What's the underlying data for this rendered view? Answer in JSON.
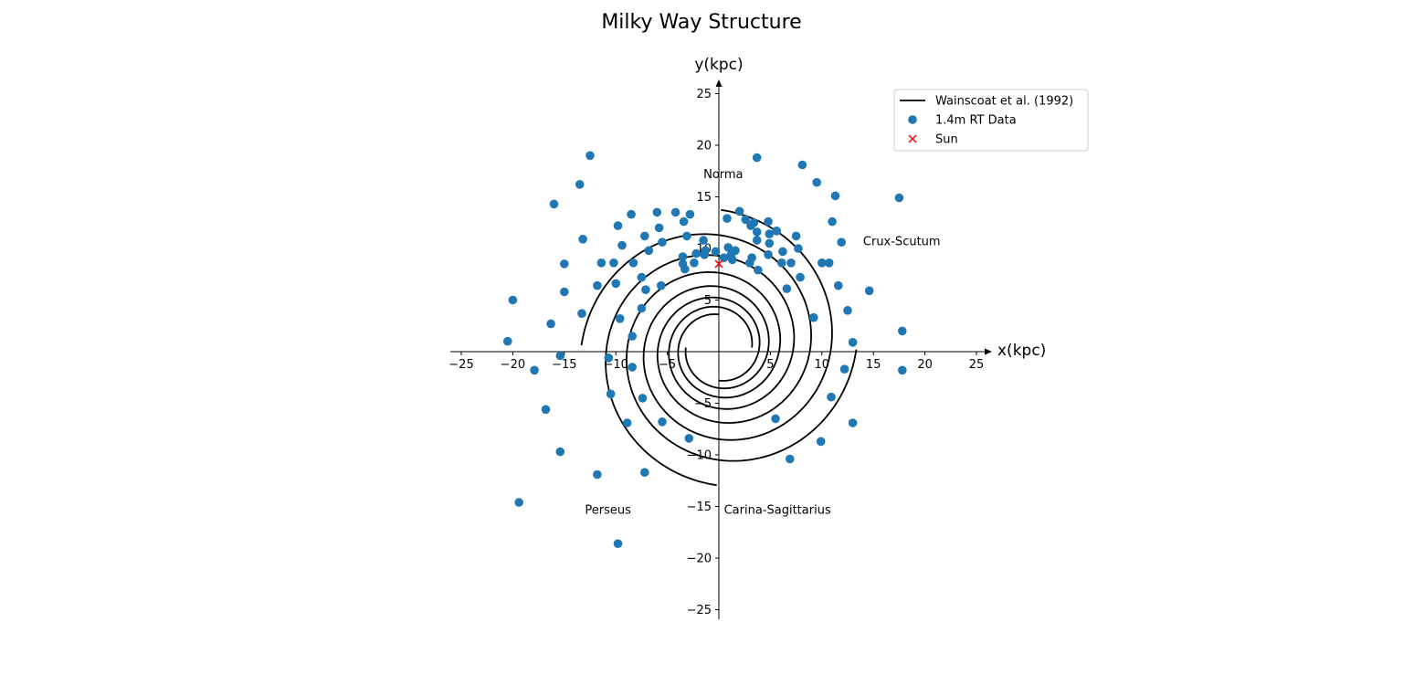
{
  "chart_data": {
    "type": "scatter",
    "title": "Milky Way Structure",
    "xlabel": "x(kpc)",
    "ylabel": "y(kpc)",
    "xlim": [
      -26,
      26
    ],
    "ylim": [
      -26,
      26
    ],
    "xticks": [
      -25,
      -20,
      -15,
      -10,
      -5,
      5,
      10,
      15,
      20,
      25
    ],
    "yticks": [
      -25,
      -20,
      -15,
      -10,
      -5,
      5,
      10,
      15,
      20,
      25
    ],
    "grid": false,
    "legend_position": "upper right",
    "legend": [
      {
        "label": "Wainscoat et al. (1992)",
        "marker": "line"
      },
      {
        "label": "1.4m RT Data",
        "marker": "circle"
      },
      {
        "label": "Sun",
        "marker": "x"
      }
    ],
    "arm_labels": [
      {
        "text": "Norma",
        "x": -1.5,
        "y": 16.8
      },
      {
        "text": "Crux-Scutum",
        "x": 14.0,
        "y": 10.3
      },
      {
        "text": "Perseus",
        "x": -13.0,
        "y": -15.7
      },
      {
        "text": "Carina-Sagittarius",
        "x": 0.5,
        "y": -15.7
      }
    ],
    "series": [
      {
        "name": "Wainscoat et al. (1992)",
        "kind": "model_spiral_arms",
        "color": "#000000",
        "arms": [
          {
            "phase_deg": 90,
            "turns_deg": 630
          },
          {
            "phase_deg": 180,
            "turns_deg": 630
          },
          {
            "phase_deg": 270,
            "turns_deg": 630
          },
          {
            "phase_deg": 0,
            "turns_deg": 630
          }
        ]
      },
      {
        "name": "1.4m RT Data",
        "color": "#1f77b4",
        "points": [
          [
            -12.5,
            19.0
          ],
          [
            -16.0,
            14.3
          ],
          [
            -13.5,
            16.2
          ],
          [
            -13.2,
            10.9
          ],
          [
            -8.5,
            13.3
          ],
          [
            -9.8,
            12.2
          ],
          [
            -9.4,
            10.3
          ],
          [
            -8.3,
            8.6
          ],
          [
            -7.2,
            11.2
          ],
          [
            -6.0,
            13.5
          ],
          [
            -5.8,
            12.0
          ],
          [
            -4.2,
            13.5
          ],
          [
            -3.4,
            12.6
          ],
          [
            -2.8,
            13.3
          ],
          [
            -5.5,
            10.6
          ],
          [
            -6.8,
            9.8
          ],
          [
            -3.1,
            11.2
          ],
          [
            -1.5,
            10.8
          ],
          [
            -1.3,
            9.8
          ],
          [
            -2.2,
            9.5
          ],
          [
            -3.5,
            9.2
          ],
          [
            -3.5,
            8.5
          ],
          [
            -3.3,
            8.0
          ],
          [
            -2.4,
            8.6
          ],
          [
            -1.4,
            9.4
          ],
          [
            -0.3,
            9.7
          ],
          [
            0.5,
            9.1
          ],
          [
            0.9,
            10.1
          ],
          [
            1.2,
            9.4
          ],
          [
            1.3,
            8.9
          ],
          [
            1.6,
            9.8
          ],
          [
            0.8,
            12.9
          ],
          [
            2.0,
            13.6
          ],
          [
            2.6,
            12.8
          ],
          [
            3.1,
            12.2
          ],
          [
            3.4,
            12.5
          ],
          [
            3.7,
            11.6
          ],
          [
            3.7,
            10.8
          ],
          [
            4.8,
            12.6
          ],
          [
            4.9,
            11.4
          ],
          [
            5.6,
            11.7
          ],
          [
            4.9,
            10.5
          ],
          [
            4.8,
            9.4
          ],
          [
            3.2,
            9.1
          ],
          [
            3.0,
            8.6
          ],
          [
            3.8,
            7.9
          ],
          [
            6.2,
            9.7
          ],
          [
            6.1,
            8.6
          ],
          [
            7.0,
            8.6
          ],
          [
            7.5,
            11.2
          ],
          [
            7.7,
            10.0
          ],
          [
            7.9,
            7.2
          ],
          [
            6.6,
            6.1
          ],
          [
            10.0,
            8.6
          ],
          [
            10.7,
            8.6
          ],
          [
            11.3,
            15.1
          ],
          [
            11.0,
            12.6
          ],
          [
            11.9,
            10.6
          ],
          [
            11.6,
            6.4
          ],
          [
            12.5,
            4.0
          ],
          [
            14.6,
            5.9
          ],
          [
            9.2,
            3.3
          ],
          [
            13.0,
            0.9
          ],
          [
            17.8,
            2.0
          ],
          [
            17.5,
            14.9
          ],
          [
            9.5,
            16.4
          ],
          [
            8.1,
            18.1
          ],
          [
            3.7,
            18.8
          ],
          [
            -10.2,
            8.6
          ],
          [
            -10.0,
            6.6
          ],
          [
            -11.4,
            8.6
          ],
          [
            -11.8,
            6.4
          ],
          [
            -15.0,
            8.5
          ],
          [
            -15.0,
            5.8
          ],
          [
            -13.3,
            3.7
          ],
          [
            -9.6,
            3.2
          ],
          [
            -7.5,
            7.2
          ],
          [
            -7.1,
            6.0
          ],
          [
            -7.5,
            4.2
          ],
          [
            -5.6,
            6.4
          ],
          [
            -8.4,
            1.5
          ],
          [
            -20.0,
            5.0
          ],
          [
            -16.3,
            2.7
          ],
          [
            -20.5,
            1.0
          ],
          [
            -15.4,
            -0.4
          ],
          [
            -17.9,
            -1.8
          ],
          [
            -10.7,
            -0.6
          ],
          [
            -8.4,
            -1.5
          ],
          [
            -16.8,
            -5.6
          ],
          [
            -10.5,
            -4.1
          ],
          [
            -7.4,
            -4.5
          ],
          [
            -8.9,
            -6.9
          ],
          [
            -5.5,
            -6.8
          ],
          [
            -2.9,
            -8.4
          ],
          [
            -15.4,
            -9.7
          ],
          [
            -11.8,
            -11.9
          ],
          [
            -7.2,
            -11.7
          ],
          [
            -19.4,
            -14.6
          ],
          [
            -9.8,
            -18.6
          ],
          [
            5.5,
            -6.5
          ],
          [
            6.9,
            -10.4
          ],
          [
            9.9,
            -8.7
          ],
          [
            10.9,
            -4.4
          ],
          [
            13.0,
            -6.9
          ],
          [
            12.2,
            -1.7
          ],
          [
            17.8,
            -1.8
          ]
        ]
      },
      {
        "name": "Sun",
        "color": "#ff0000",
        "marker": "x",
        "points": [
          [
            0.0,
            8.5
          ]
        ]
      }
    ]
  }
}
